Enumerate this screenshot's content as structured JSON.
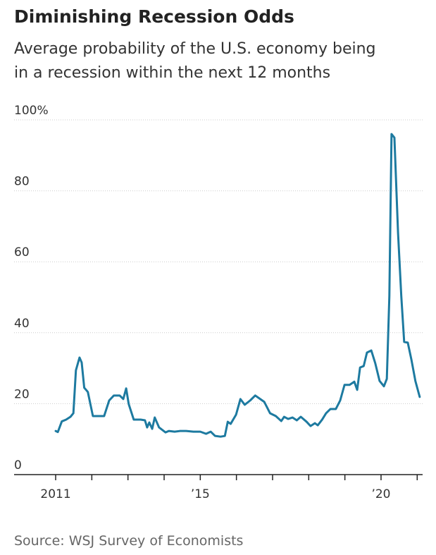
{
  "chart_data": {
    "type": "line",
    "title": "Diminishing Recession Odds",
    "subtitle": [
      "Average probability of the U.S. economy being",
      "in a recession within the next 12 months"
    ],
    "source": "Source: WSJ Survey of Economists",
    "color": "#1d7aa0",
    "grid": true,
    "x": [
      2011.0,
      2011.06,
      2011.17,
      2011.29,
      2011.41,
      2011.49,
      2011.56,
      2011.66,
      2011.72,
      2011.79,
      2011.89,
      2012.03,
      2012.19,
      2012.34,
      2012.48,
      2012.61,
      2012.77,
      2012.87,
      2012.95,
      2013.02,
      2013.16,
      2013.35,
      2013.47,
      2013.53,
      2013.59,
      2013.67,
      2013.74,
      2013.86,
      2014.04,
      2014.13,
      2014.29,
      2014.44,
      2014.61,
      2014.81,
      2015.0,
      2015.16,
      2015.29,
      2015.41,
      2015.56,
      2015.68,
      2015.76,
      2015.84,
      2015.99,
      2016.11,
      2016.23,
      2016.38,
      2016.52,
      2016.66,
      2016.77,
      2016.93,
      2017.09,
      2017.24,
      2017.32,
      2017.43,
      2017.55,
      2017.67,
      2017.78,
      2017.94,
      2018.05,
      2018.17,
      2018.25,
      2018.37,
      2018.48,
      2018.6,
      2018.75,
      2018.87,
      2018.99,
      2019.13,
      2019.26,
      2019.34,
      2019.42,
      2019.52,
      2019.61,
      2019.73,
      2019.84,
      2019.96,
      2020.08,
      2020.16,
      2020.23,
      2020.29,
      2020.37,
      2020.47,
      2020.56,
      2020.64,
      2020.74,
      2020.84,
      2020.95,
      2021.07
    ],
    "values": [
      12.3,
      12.0,
      15.0,
      15.5,
      16.3,
      17.3,
      29.4,
      33.0,
      31.6,
      24.5,
      23.3,
      16.5,
      16.5,
      16.5,
      20.9,
      22.3,
      22.3,
      21.3,
      24.3,
      19.9,
      15.5,
      15.5,
      15.3,
      13.3,
      14.7,
      12.9,
      16.1,
      13.3,
      11.9,
      12.3,
      12.1,
      12.3,
      12.3,
      12.1,
      12.1,
      11.5,
      12.1,
      10.9,
      10.7,
      10.9,
      14.9,
      14.3,
      16.9,
      21.3,
      19.7,
      20.9,
      22.3,
      21.3,
      20.5,
      17.3,
      16.5,
      15.1,
      16.3,
      15.7,
      16.1,
      15.3,
      16.3,
      14.9,
      13.7,
      14.5,
      13.9,
      15.5,
      17.3,
      18.5,
      18.5,
      20.9,
      25.3,
      25.3,
      26.2,
      23.9,
      30.2,
      30.6,
      34.4,
      35.0,
      31.4,
      26.4,
      24.9,
      27.0,
      50.3,
      96.0,
      95.0,
      68.2,
      50.3,
      37.4,
      37.2,
      32.4,
      26.4,
      21.9
    ],
    "xlim": [
      2009.85,
      2021.15
    ],
    "xticks": [
      {
        "value": 2011,
        "label": "2011"
      },
      {
        "value": 2015,
        "label": "’15"
      },
      {
        "value": 2020,
        "label": "’20"
      }
    ],
    "xminorticks": [
      2012,
      2013,
      2014,
      2016,
      2017,
      2018,
      2019,
      2021
    ],
    "ylim": [
      0,
      100
    ],
    "yticks": [
      0,
      20,
      40,
      60,
      80,
      {
        "value": 100,
        "label": "100%"
      }
    ]
  }
}
